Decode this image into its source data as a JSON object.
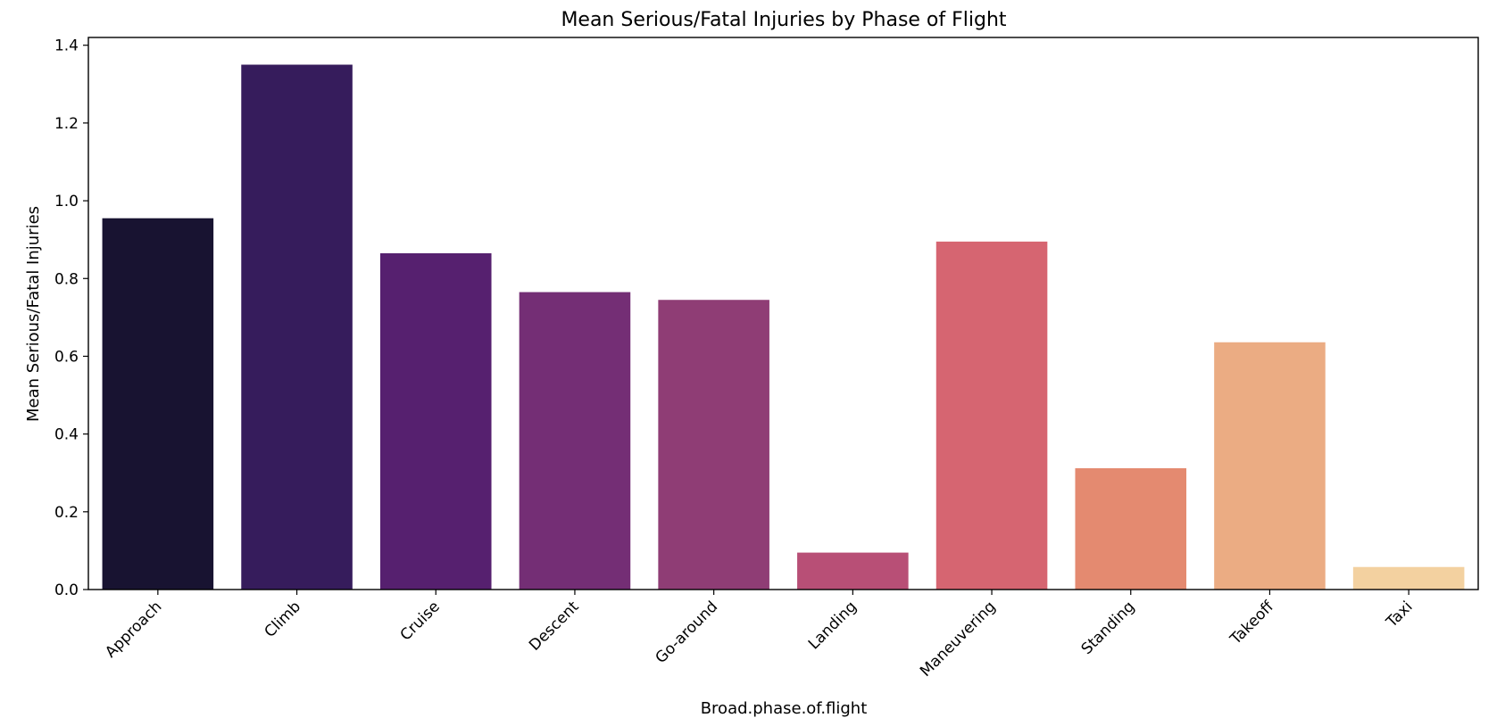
{
  "chart_data": {
    "type": "bar",
    "title": "Mean Serious/Fatal Injuries by Phase of Flight",
    "xlabel": "Broad.phase.of.flight",
    "ylabel": "Mean Serious/Fatal Injuries",
    "categories": [
      "Approach",
      "Climb",
      "Cruise",
      "Descent",
      "Go-around",
      "Landing",
      "Maneuvering",
      "Standing",
      "Takeoff",
      "Taxi"
    ],
    "values": [
      0.955,
      1.35,
      0.865,
      0.765,
      0.745,
      0.095,
      0.895,
      0.312,
      0.636,
      0.058
    ],
    "colors": [
      "#181331",
      "#361c5c",
      "#56206f",
      "#742e75",
      "#8f3d75",
      "#b84f76",
      "#d66571",
      "#e48a70",
      "#ebac83",
      "#f3d1a0"
    ],
    "ylim": [
      0,
      1.42
    ],
    "yticks": [
      0.0,
      0.2,
      0.4,
      0.6,
      0.8,
      1.0,
      1.2,
      1.4
    ],
    "ytick_labels": [
      "0.0",
      "0.2",
      "0.4",
      "0.6",
      "0.8",
      "1.0",
      "1.2",
      "1.4"
    ],
    "grid": false,
    "legend": "none"
  }
}
